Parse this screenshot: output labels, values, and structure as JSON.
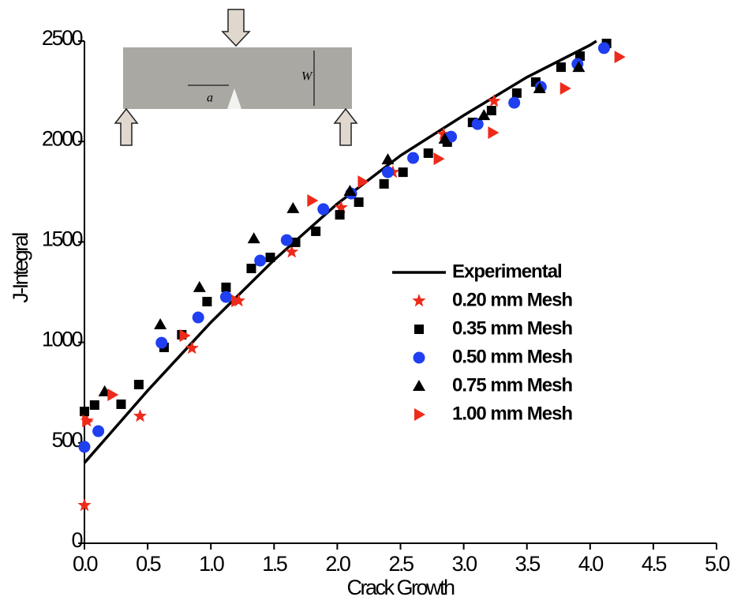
{
  "inset": {
    "labels": [
      "a",
      "W"
    ]
  },
  "chart_data": {
    "type": "scatter",
    "x_label": "Crack Growth",
    "y_label": "J-Integral",
    "xlim": [
      0,
      5
    ],
    "ylim": [
      0,
      2500
    ],
    "xticks": [
      {
        "value": 0,
        "label": "0.0"
      },
      {
        "value": 0.5,
        "label": "0.5"
      },
      {
        "value": 1,
        "label": "1.0"
      },
      {
        "value": 1.5,
        "label": "1.5"
      },
      {
        "value": 2,
        "label": "2.0"
      },
      {
        "value": 2.5,
        "label": "2.5"
      },
      {
        "value": 3,
        "label": "3.0"
      },
      {
        "value": 3.5,
        "label": "3.5"
      },
      {
        "value": 4,
        "label": "4.0"
      },
      {
        "value": 4.5,
        "label": "4.5"
      },
      {
        "value": 5,
        "label": "5.0"
      }
    ],
    "yticks": [
      0,
      500,
      1000,
      1500,
      2000,
      2500
    ],
    "grid": false,
    "legend": "right",
    "series": [
      {
        "name": "Experimental",
        "mode": "line",
        "color": "#000000",
        "x": [
          0,
          0.5,
          1,
          1.5,
          2,
          2.5,
          3,
          3.5,
          4,
          4.05
        ],
        "values": [
          400,
          760,
          1100,
          1410,
          1690,
          1930,
          2130,
          2320,
          2480,
          2500
        ]
      },
      {
        "name": "0.20 mm Mesh",
        "mode": "markers",
        "marker": "star",
        "color": "#ee2a1a",
        "x": [
          0.0,
          0.02,
          0.44,
          0.85,
          1.22,
          1.64,
          2.03,
          2.44,
          2.84,
          3.24
        ],
        "values": [
          189,
          609,
          633,
          971,
          1207,
          1450,
          1671,
          1847,
          2036,
          2201
        ]
      },
      {
        "name": "0.35 mm Mesh",
        "mode": "markers",
        "marker": "square",
        "color": "#000000",
        "x": [
          0.0,
          0.08,
          0.29,
          0.43,
          0.63,
          0.77,
          0.97,
          1.12,
          1.32,
          1.47,
          1.67,
          1.83,
          2.02,
          2.17,
          2.37,
          2.52,
          2.72,
          2.87,
          3.07,
          3.22,
          3.42,
          3.57,
          3.77,
          3.92,
          4.13
        ],
        "values": [
          656,
          688,
          692,
          790,
          975,
          1038,
          1203,
          1274,
          1368,
          1423,
          1498,
          1553,
          1635,
          1698,
          1789,
          1847,
          1942,
          1997,
          2095,
          2154,
          2241,
          2296,
          2370,
          2425,
          2488
        ]
      },
      {
        "name": "0.50 mm Mesh",
        "mode": "markers",
        "marker": "circle",
        "color": "#1f3ff0",
        "x": [
          0.0,
          0.11,
          0.61,
          0.9,
          1.12,
          1.39,
          1.6,
          1.89,
          2.11,
          2.4,
          2.6,
          2.9,
          3.11,
          3.4,
          3.61,
          3.9,
          4.11
        ],
        "values": [
          480,
          558,
          998,
          1124,
          1226,
          1407,
          1509,
          1663,
          1741,
          1847,
          1918,
          2024,
          2087,
          2193,
          2272,
          2386,
          2465
        ]
      },
      {
        "name": "0.75 mm Mesh",
        "mode": "markers",
        "marker": "triangle",
        "color": "#000000",
        "x": [
          0.16,
          0.6,
          0.91,
          1.34,
          1.65,
          2.1,
          2.4,
          2.85,
          3.16,
          3.6,
          3.91
        ],
        "values": [
          755,
          1089,
          1274,
          1517,
          1667,
          1753,
          1910,
          2013,
          2130,
          2264,
          2370
        ]
      },
      {
        "name": "1.00 mm Mesh",
        "mode": "markers",
        "marker": "triangle-right",
        "color": "#ee2a1a",
        "x": [
          0.02,
          0.22,
          0.79,
          1.2,
          1.8,
          2.2,
          2.8,
          3.23,
          3.8,
          4.23
        ],
        "values": [
          609,
          739,
          1034,
          1207,
          1706,
          1800,
          1914,
          2044,
          2264,
          2421
        ]
      }
    ]
  }
}
